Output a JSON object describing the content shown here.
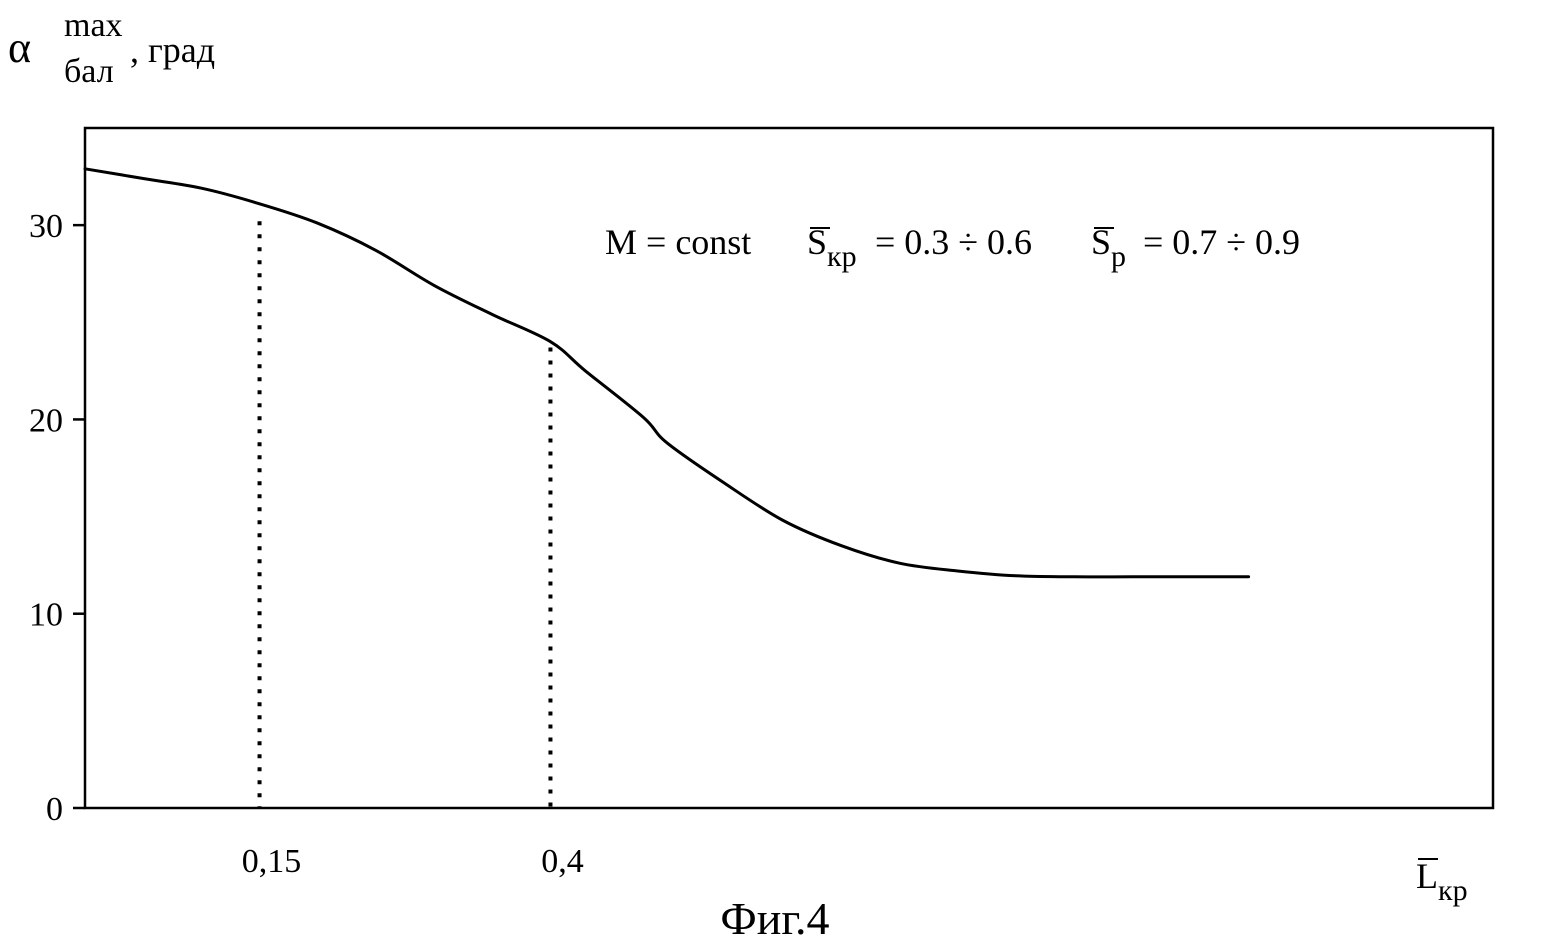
{
  "figure_caption": "Фиг.4",
  "chart_data": {
    "type": "line",
    "ylabel": {
      "symbol": "α",
      "superscript": "max",
      "subscript": "бал",
      "unit": ", град"
    },
    "xlabel": {
      "symbol": "L",
      "subscript": "кр",
      "overline": true
    },
    "ylim": [
      0,
      35
    ],
    "y_ticks": [
      0,
      10,
      20,
      30
    ],
    "y_tick_labels": [
      "0",
      "10",
      "20",
      "30"
    ],
    "x_ticks": [
      0.15,
      0.4
    ],
    "x_tick_labels": [
      "0,15",
      "0,4"
    ],
    "xlim": [
      0,
      1.21
    ],
    "grid": false,
    "annotation": {
      "m_text": "M = const",
      "s1_symbol": "S",
      "s1_subscript": "кр",
      "s1_text": " = 0.3 ÷ 0.6",
      "s2_symbol": "S",
      "s2_subscript": "р",
      "s2_text": " = 0.7 ÷ 0.9"
    },
    "series": [
      {
        "x": [
          0,
          0.05,
          0.1,
          0.15,
          0.2,
          0.25,
          0.3,
          0.35,
          0.4,
          0.43,
          0.48,
          0.5,
          0.55,
          0.6,
          0.65,
          0.7,
          0.75,
          0.8,
          0.85,
          0.9,
          0.95,
          1.0
        ],
        "values": [
          32.9,
          32.4,
          31.9,
          31.1,
          30.1,
          28.7,
          26.9,
          25.4,
          24.0,
          22.5,
          20.1,
          18.8,
          16.7,
          14.8,
          13.5,
          12.6,
          12.2,
          11.95,
          11.9,
          11.9,
          11.9,
          11.9
        ]
      }
    ],
    "reference_lines": [
      {
        "x": 0.15,
        "y": 30.2,
        "style": "dotted"
      },
      {
        "x": 0.4,
        "y": 23.7,
        "style": "dotted"
      }
    ]
  }
}
